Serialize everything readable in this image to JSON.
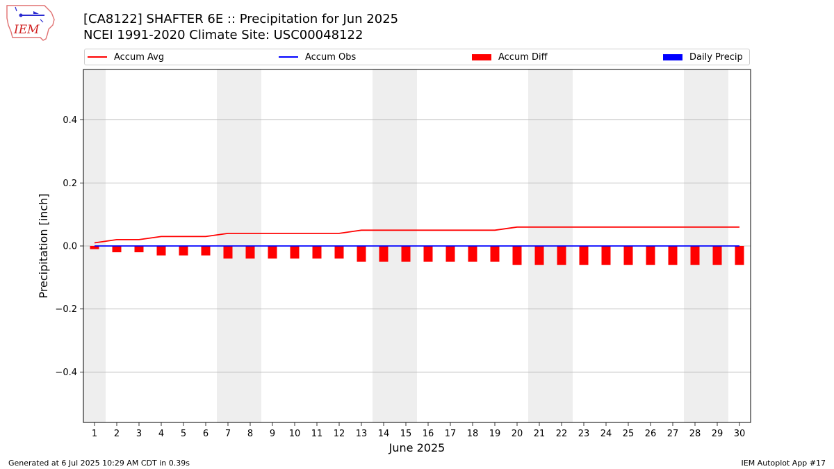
{
  "header": {
    "title_line1": "[CA8122] SHAFTER 6E :: Precipitation for Jun 2025",
    "title_line2": "NCEI 1991-2020 Climate Site: USC00048122",
    "logo_text": "IEM"
  },
  "legend": {
    "accum_avg": "Accum Avg",
    "accum_obs": "Accum Obs",
    "accum_diff": "Accum Diff",
    "daily_precip": "Daily Precip"
  },
  "colors": {
    "accum_avg": "#ff0000",
    "accum_obs": "#0000ff",
    "accum_diff": "#ff0000",
    "daily_precip": "#0000ff",
    "weekend_shade": "#eeeeee",
    "grid": "#b0b0b0"
  },
  "footer": {
    "generated": "Generated at 6 Jul 2025 10:29 AM CDT in 0.39s",
    "app": "IEM Autoplot App #17"
  },
  "chart_data": {
    "type": "bar",
    "xlabel": "June 2025",
    "ylabel": "Precipitation [inch]",
    "ylim": [
      -0.56,
      0.56
    ],
    "yticks": [
      -0.4,
      -0.2,
      0.0,
      0.2,
      0.4
    ],
    "ytick_labels": [
      "−0.4",
      "−0.2",
      "0.0",
      "0.2",
      "0.4"
    ],
    "grid": "horizontal",
    "legend_position": "top",
    "x": [
      1,
      2,
      3,
      4,
      5,
      6,
      7,
      8,
      9,
      10,
      11,
      12,
      13,
      14,
      15,
      16,
      17,
      18,
      19,
      20,
      21,
      22,
      23,
      24,
      25,
      26,
      27,
      28,
      29,
      30
    ],
    "weekend_days": [
      1,
      7,
      8,
      14,
      15,
      21,
      22,
      28,
      29
    ],
    "series": [
      {
        "name": "Accum Avg",
        "kind": "line",
        "values": [
          0.01,
          0.02,
          0.02,
          0.03,
          0.03,
          0.03,
          0.04,
          0.04,
          0.04,
          0.04,
          0.04,
          0.04,
          0.05,
          0.05,
          0.05,
          0.05,
          0.05,
          0.05,
          0.05,
          0.06,
          0.06,
          0.06,
          0.06,
          0.06,
          0.06,
          0.06,
          0.06,
          0.06,
          0.06,
          0.06
        ]
      },
      {
        "name": "Accum Obs",
        "kind": "line",
        "values": [
          0,
          0,
          0,
          0,
          0,
          0,
          0,
          0,
          0,
          0,
          0,
          0,
          0,
          0,
          0,
          0,
          0,
          0,
          0,
          0,
          0,
          0,
          0,
          0,
          0,
          0,
          0,
          0,
          0,
          0
        ]
      },
      {
        "name": "Accum Diff",
        "kind": "bar",
        "values": [
          -0.01,
          -0.02,
          -0.02,
          -0.03,
          -0.03,
          -0.03,
          -0.04,
          -0.04,
          -0.04,
          -0.04,
          -0.04,
          -0.04,
          -0.05,
          -0.05,
          -0.05,
          -0.05,
          -0.05,
          -0.05,
          -0.05,
          -0.06,
          -0.06,
          -0.06,
          -0.06,
          -0.06,
          -0.06,
          -0.06,
          -0.06,
          -0.06,
          -0.06,
          -0.06
        ]
      },
      {
        "name": "Daily Precip",
        "kind": "bar",
        "values": [
          0,
          0,
          0,
          0,
          0,
          0,
          0,
          0,
          0,
          0,
          0,
          0,
          0,
          0,
          0,
          0,
          0,
          0,
          0,
          0,
          0,
          0,
          0,
          0,
          0,
          0,
          0,
          0,
          0,
          0
        ]
      }
    ]
  }
}
